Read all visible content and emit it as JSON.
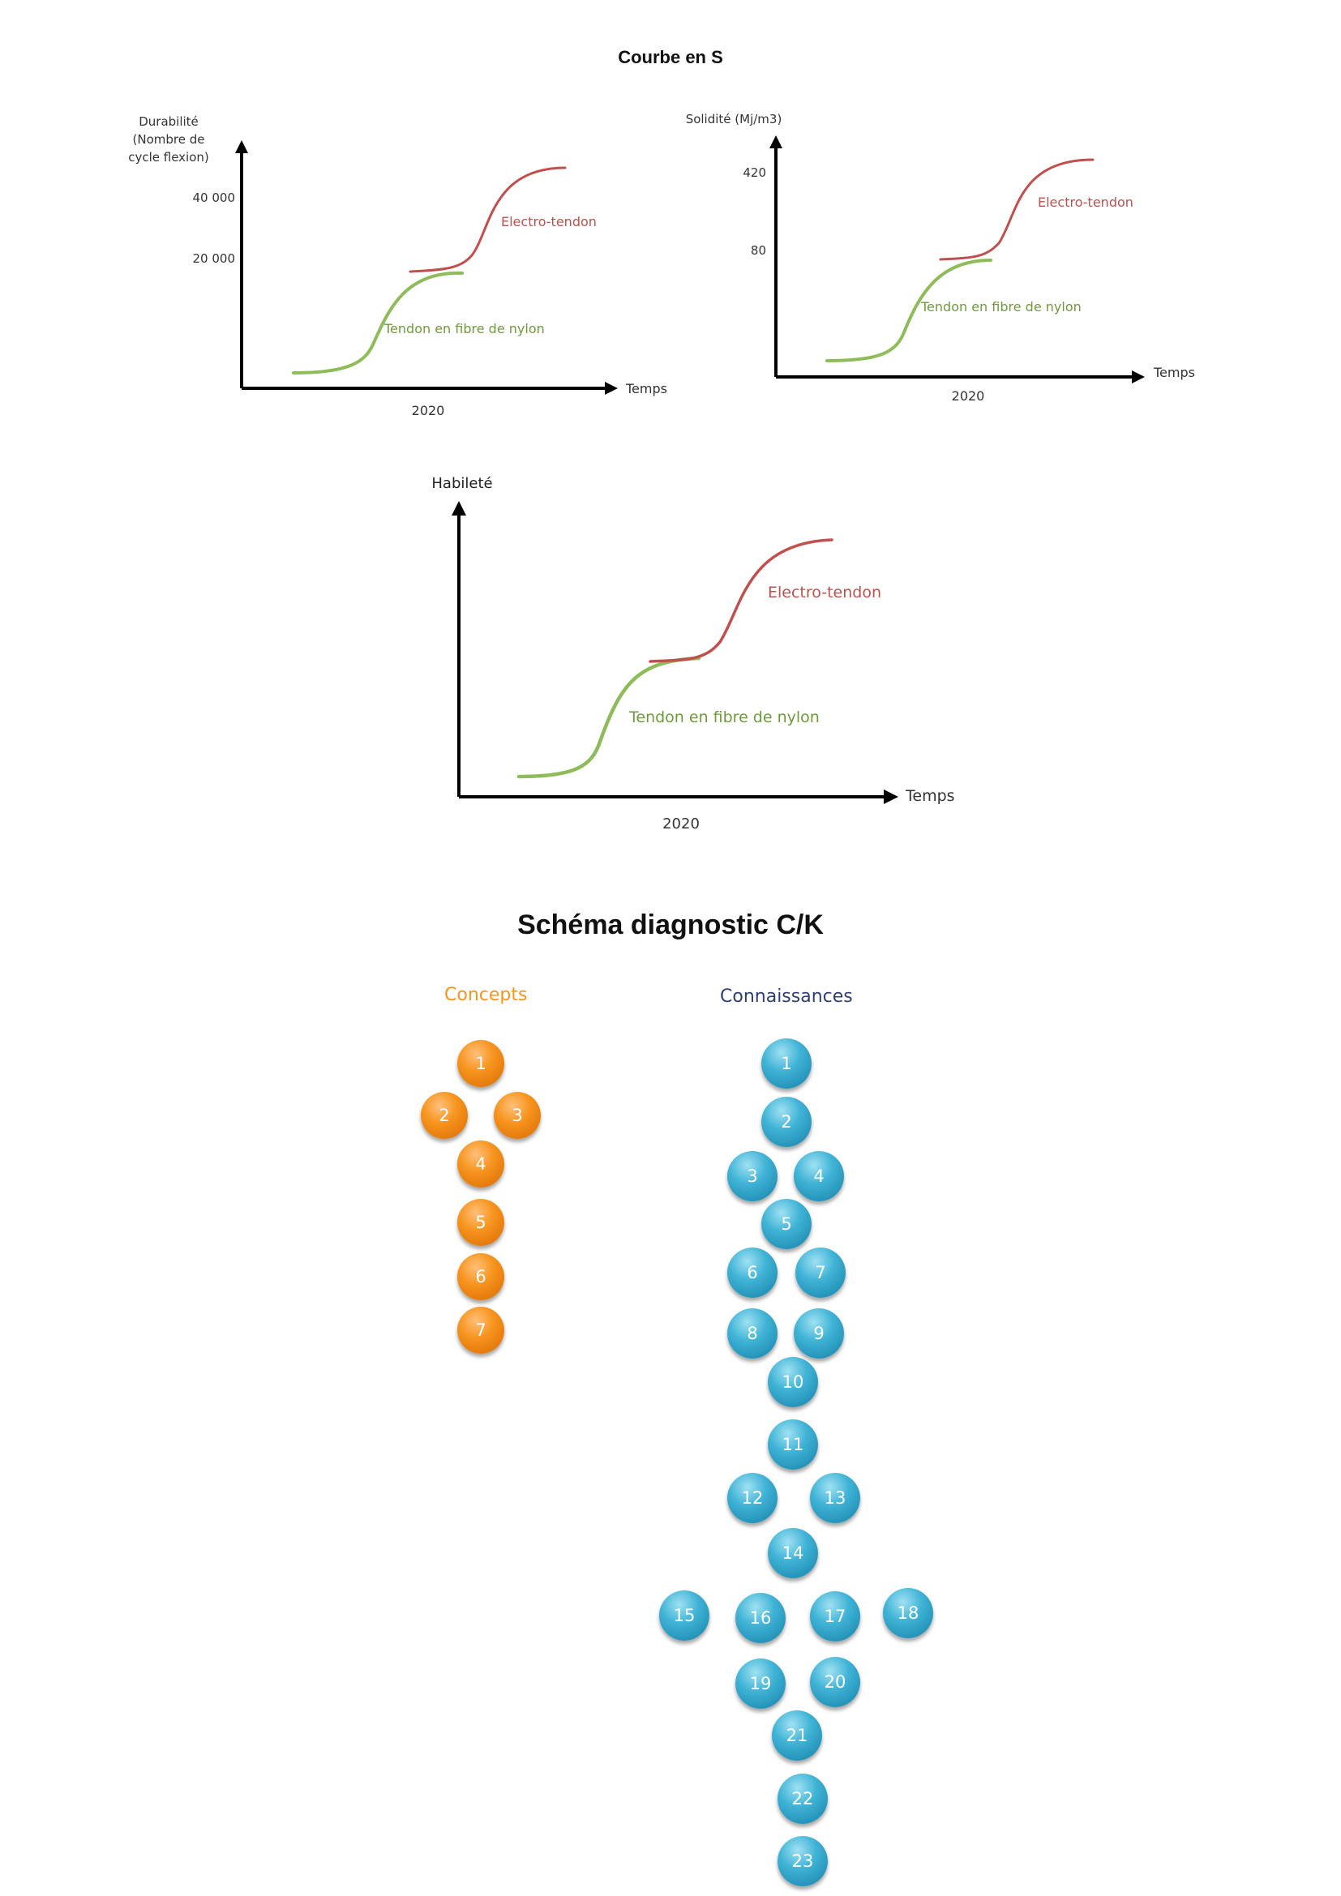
{
  "page": {
    "title_s_curve": "Courbe en S",
    "title_ck": "Schéma diagnostic C/K"
  },
  "chart_data": [
    {
      "type": "line",
      "ylabel": "Durabilité (Nombre de cycle flexion)",
      "xlabel": "Temps",
      "xtick": "2020",
      "yticks": [
        "40 000",
        "20 000"
      ],
      "series": [
        {
          "name": "Tendon en fibre de nylon",
          "color": "#8fbc5a"
        },
        {
          "name": "Electro-tendon",
          "color": "#c0504d"
        }
      ]
    },
    {
      "type": "line",
      "ylabel": "Solidité (Mj/m3)",
      "xlabel": "Temps",
      "xtick": "2020",
      "yticks": [
        "420",
        "80"
      ],
      "series": [
        {
          "name": "Tendon en fibre de nylon",
          "color": "#8fbc5a"
        },
        {
          "name": "Electro-tendon",
          "color": "#c0504d"
        }
      ]
    },
    {
      "type": "line",
      "ylabel": "Habileté",
      "xlabel": "Temps",
      "xtick": "2020",
      "yticks": [],
      "series": [
        {
          "name": "Tendon en fibre de nylon",
          "color": "#8fbc5a"
        },
        {
          "name": "Electro-tendon",
          "color": "#c0504d"
        }
      ]
    }
  ],
  "ck": {
    "concepts_label": "Concepts",
    "connaissances_label": "Connaissances",
    "concepts_color": "#f7941e",
    "connaissances_color": "#3fb3d6",
    "concepts": [
      "1",
      "2",
      "3",
      "4",
      "5",
      "6",
      "7"
    ],
    "connaissances": [
      "1",
      "2",
      "3",
      "4",
      "5",
      "6",
      "7",
      "8",
      "9",
      "10",
      "11",
      "12",
      "13",
      "14",
      "15",
      "16",
      "17",
      "18",
      "19",
      "20",
      "21",
      "22",
      "23"
    ]
  }
}
